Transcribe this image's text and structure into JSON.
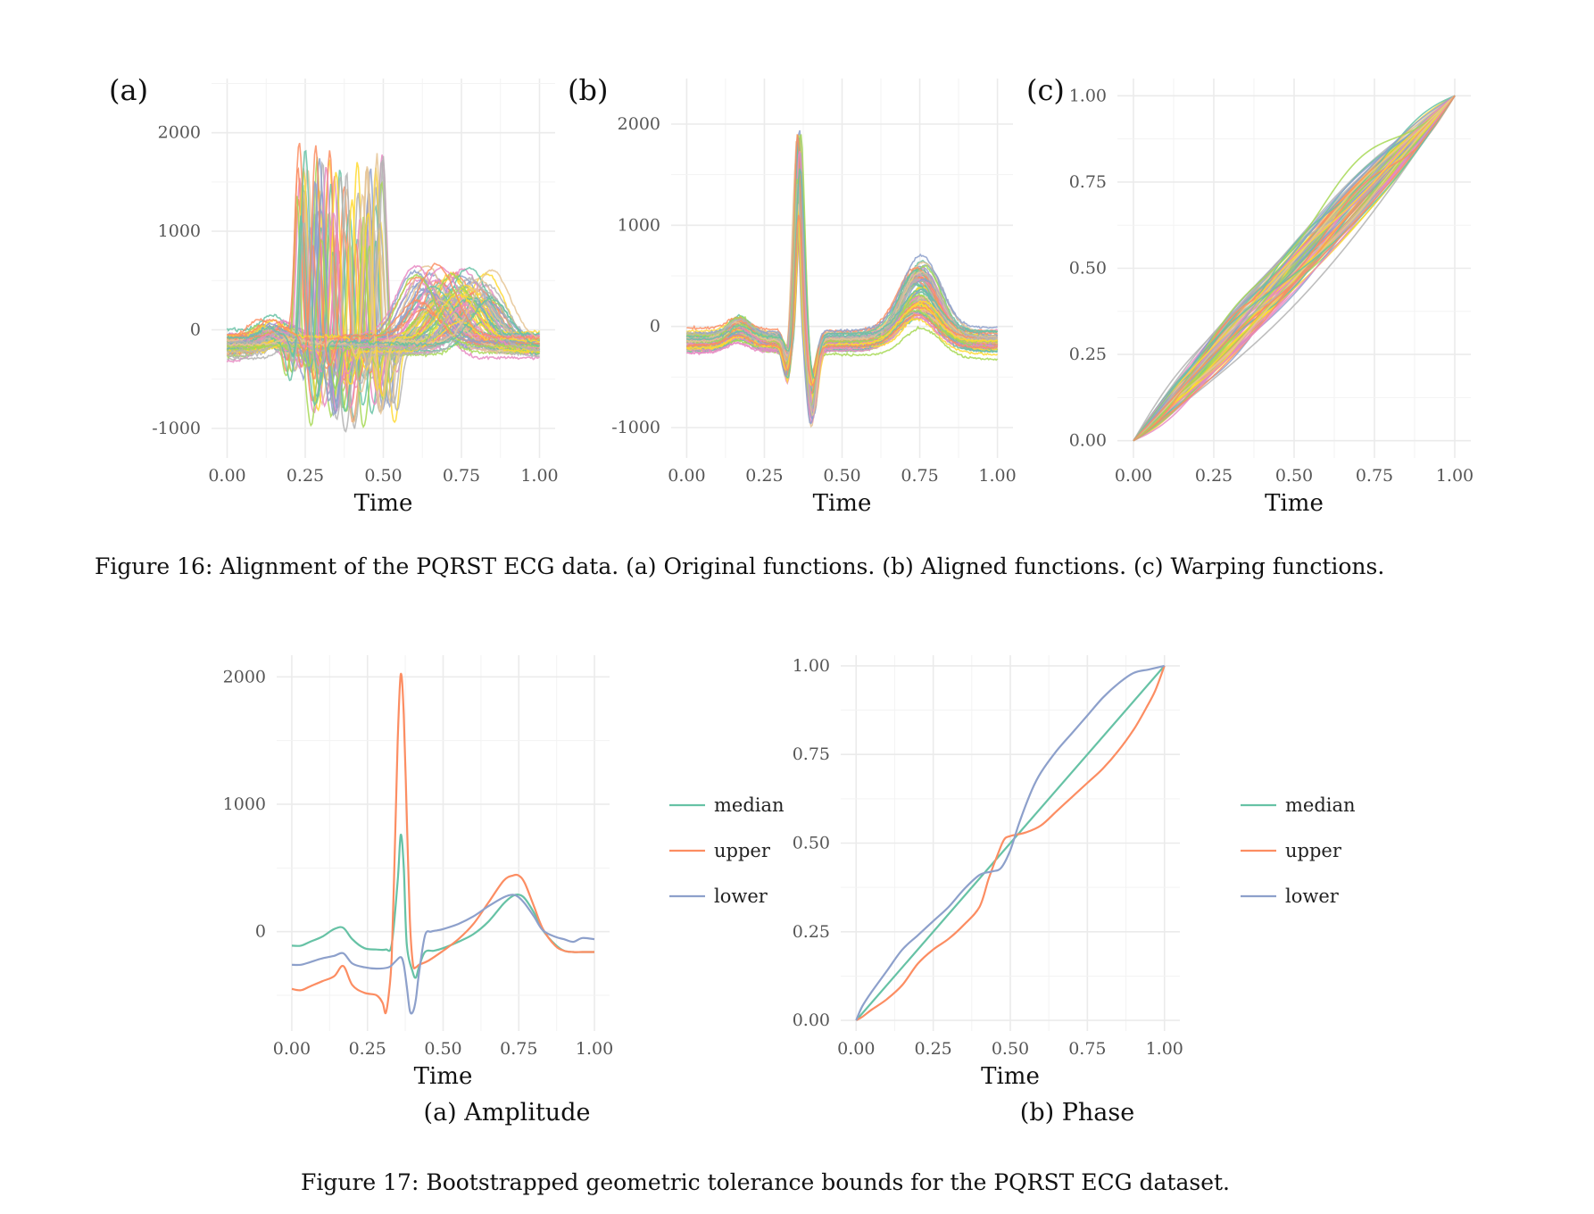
{
  "figure16": {
    "caption": "Figure 16: Alignment of the PQRST ECG data. (a) Original functions. (b) Aligned functions. (c) Warping functions."
  },
  "figure17": {
    "caption": "Figure 17: Bootstrapped geometric tolerance bounds for the PQRST ECG dataset."
  },
  "palette": [
    "#66c2a5",
    "#fc8d62",
    "#8da0cb",
    "#e78ac3",
    "#a6d854",
    "#ffd92f",
    "#e5c494",
    "#b3b3b3"
  ],
  "chart_data": [
    {
      "id": "fig16a",
      "panel_label": "(a)",
      "type": "line",
      "xlabel": "Time",
      "ylabel": "",
      "xlim": [
        0,
        1
      ],
      "ylim": [
        -1300,
        2550
      ],
      "xticks": [
        "0.00",
        "0.25",
        "0.50",
        "0.75",
        "1.00"
      ],
      "yticks": [
        "-1000",
        "0",
        "1000",
        "2000"
      ],
      "grid": true,
      "legend": "none",
      "description_series": "approximately 100 original (unaligned) ECG PQRST curves, many overlapping colored lines",
      "representative_series": [
        {
          "x": [
            0,
            0.1,
            0.2,
            0.26,
            0.3,
            0.33,
            0.36,
            0.4,
            0.45,
            0.55,
            0.65,
            0.75,
            0.82,
            0.9,
            1
          ],
          "y": [
            -150,
            -80,
            -120,
            1500,
            -400,
            1200,
            -500,
            1800,
            -200,
            0,
            200,
            500,
            300,
            -100,
            -150
          ]
        }
      ]
    },
    {
      "id": "fig16b",
      "panel_label": "(b)",
      "type": "line",
      "xlabel": "Time",
      "ylabel": "",
      "xlim": [
        0,
        1
      ],
      "ylim": [
        -1300,
        2450
      ],
      "xticks": [
        "0.00",
        "0.25",
        "0.50",
        "0.75",
        "1.00"
      ],
      "yticks": [
        "-1000",
        "0",
        "1000",
        "2000"
      ],
      "grid": true,
      "legend": "none",
      "description_series": "aligned ECG curves with common R peak at about 0.36 and T wave at about 0.75"
    },
    {
      "id": "fig16c",
      "panel_label": "(c)",
      "type": "line",
      "xlabel": "Time",
      "ylabel": "",
      "xlim": [
        0,
        1
      ],
      "ylim": [
        0,
        1
      ],
      "xticks": [
        "0.00",
        "0.25",
        "0.50",
        "0.75",
        "1.00"
      ],
      "yticks": [
        "0.00",
        "0.25",
        "0.50",
        "0.75",
        "1.00"
      ],
      "grid": true,
      "legend": "none",
      "description_series": "warping functions from (0,0) to (1,1) clustered around the diagonal"
    },
    {
      "id": "fig17a",
      "subcaption": "(a) Amplitude",
      "type": "line",
      "xlabel": "Time",
      "ylabel": "",
      "xlim": [
        0,
        1
      ],
      "ylim": [
        -780,
        2170
      ],
      "xticks": [
        "0.00",
        "0.25",
        "0.50",
        "0.75",
        "1.00"
      ],
      "yticks": [
        "0",
        "1000",
        "2000"
      ],
      "grid": true,
      "legend": "right",
      "series": [
        {
          "name": "median",
          "color": "#66c2a5",
          "x": [
            0,
            0.03,
            0.06,
            0.1,
            0.14,
            0.17,
            0.2,
            0.24,
            0.28,
            0.31,
            0.33,
            0.35,
            0.36,
            0.37,
            0.38,
            0.4,
            0.41,
            0.42,
            0.44,
            0.47,
            0.5,
            0.55,
            0.6,
            0.65,
            0.7,
            0.73,
            0.75,
            0.77,
            0.8,
            0.83,
            0.87,
            0.9,
            0.93,
            0.96,
            1
          ],
          "y": [
            -110,
            -110,
            -80,
            -40,
            20,
            30,
            -60,
            -130,
            -140,
            -140,
            -100,
            400,
            760,
            500,
            -100,
            -320,
            -360,
            -280,
            -160,
            -150,
            -130,
            -80,
            -20,
            80,
            220,
            280,
            290,
            260,
            150,
            10,
            -100,
            -150,
            -160,
            -160,
            -160
          ]
        },
        {
          "name": "upper",
          "color": "#fc8d62",
          "x": [
            0,
            0.03,
            0.06,
            0.1,
            0.14,
            0.17,
            0.2,
            0.24,
            0.28,
            0.3,
            0.31,
            0.32,
            0.33,
            0.34,
            0.35,
            0.36,
            0.37,
            0.38,
            0.39,
            0.4,
            0.41,
            0.42,
            0.45,
            0.5,
            0.55,
            0.6,
            0.65,
            0.7,
            0.73,
            0.75,
            0.77,
            0.8,
            0.83,
            0.87,
            0.9,
            0.93,
            0.96,
            1
          ],
          "y": [
            -450,
            -460,
            -430,
            -390,
            -350,
            -270,
            -420,
            -480,
            -500,
            -560,
            -640,
            -500,
            -200,
            600,
            1500,
            2020,
            1700,
            900,
            100,
            -250,
            -280,
            -260,
            -230,
            -150,
            -60,
            60,
            230,
            400,
            440,
            440,
            380,
            200,
            20,
            -110,
            -150,
            -160,
            -160,
            -160
          ]
        },
        {
          "name": "lower",
          "color": "#8da0cb",
          "x": [
            0,
            0.03,
            0.06,
            0.1,
            0.14,
            0.17,
            0.2,
            0.24,
            0.28,
            0.32,
            0.34,
            0.36,
            0.37,
            0.38,
            0.39,
            0.4,
            0.41,
            0.42,
            0.44,
            0.46,
            0.48,
            0.5,
            0.55,
            0.6,
            0.65,
            0.7,
            0.73,
            0.75,
            0.77,
            0.8,
            0.83,
            0.87,
            0.9,
            0.93,
            0.96,
            1
          ],
          "y": [
            -260,
            -260,
            -240,
            -210,
            -190,
            -170,
            -250,
            -280,
            -290,
            -280,
            -240,
            -200,
            -260,
            -430,
            -620,
            -630,
            -530,
            -330,
            -30,
            0,
            10,
            20,
            60,
            120,
            200,
            270,
            290,
            270,
            220,
            120,
            10,
            -40,
            -60,
            -80,
            -50,
            -60
          ]
        }
      ]
    },
    {
      "id": "fig17b",
      "subcaption": "(b) Phase",
      "type": "line",
      "xlabel": "Time",
      "ylabel": "",
      "xlim": [
        0,
        1
      ],
      "ylim": [
        0,
        1
      ],
      "xticks": [
        "0.00",
        "0.25",
        "0.50",
        "0.75",
        "1.00"
      ],
      "yticks": [
        "0.00",
        "0.25",
        "0.50",
        "0.75",
        "1.00"
      ],
      "grid": true,
      "legend": "right",
      "series": [
        {
          "name": "median",
          "color": "#66c2a5",
          "x": [
            0,
            1
          ],
          "y": [
            0,
            1
          ]
        },
        {
          "name": "upper",
          "color": "#fc8d62",
          "x": [
            0,
            0.02,
            0.05,
            0.1,
            0.15,
            0.2,
            0.25,
            0.3,
            0.35,
            0.4,
            0.43,
            0.46,
            0.48,
            0.5,
            0.55,
            0.6,
            0.65,
            0.7,
            0.75,
            0.8,
            0.85,
            0.9,
            0.94,
            0.97,
            1
          ],
          "y": [
            0,
            0.01,
            0.03,
            0.06,
            0.1,
            0.16,
            0.2,
            0.23,
            0.27,
            0.32,
            0.4,
            0.47,
            0.51,
            0.52,
            0.53,
            0.55,
            0.59,
            0.63,
            0.67,
            0.71,
            0.76,
            0.82,
            0.88,
            0.93,
            1.0
          ]
        },
        {
          "name": "lower",
          "color": "#8da0cb",
          "x": [
            0,
            0.02,
            0.05,
            0.1,
            0.15,
            0.2,
            0.25,
            0.3,
            0.35,
            0.4,
            0.44,
            0.47,
            0.5,
            0.53,
            0.57,
            0.6,
            0.65,
            0.7,
            0.75,
            0.8,
            0.85,
            0.9,
            0.95,
            1
          ],
          "y": [
            0,
            0.04,
            0.08,
            0.14,
            0.2,
            0.24,
            0.28,
            0.32,
            0.37,
            0.41,
            0.42,
            0.43,
            0.48,
            0.56,
            0.65,
            0.7,
            0.76,
            0.81,
            0.86,
            0.91,
            0.95,
            0.98,
            0.99,
            1.0
          ]
        }
      ]
    }
  ]
}
